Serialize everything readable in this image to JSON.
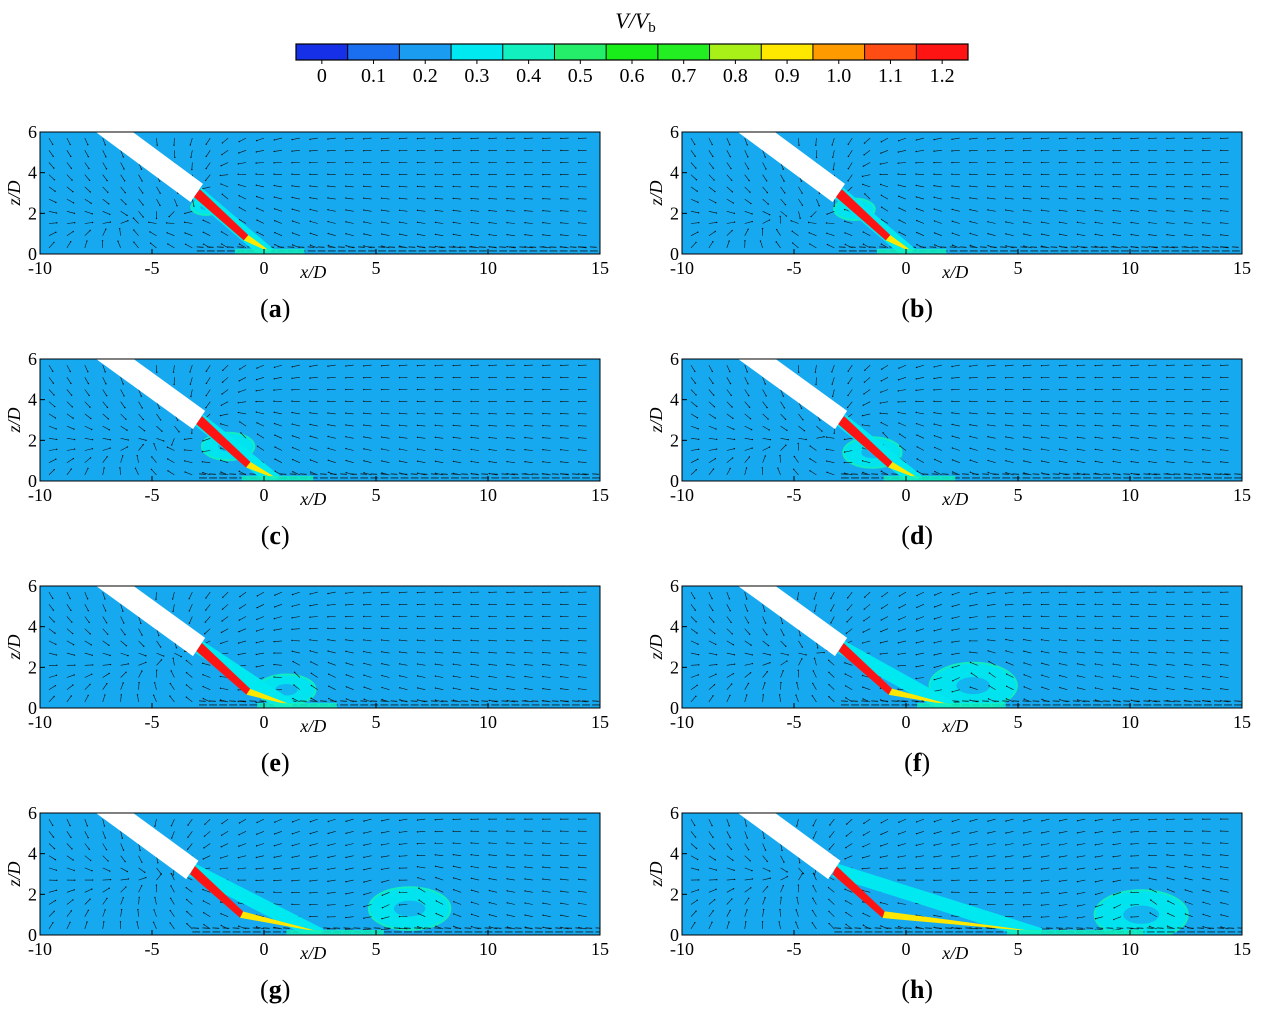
{
  "colorbar": {
    "title_main": "V/V",
    "title_sub": "b",
    "ticks": [
      "0",
      "0.1",
      "0.2",
      "0.3",
      "0.4",
      "0.5",
      "0.6",
      "0.7",
      "0.8",
      "0.9",
      "1.0",
      "1.1",
      "1.2"
    ],
    "colors": [
      "#1530e6",
      "#1a6ff0",
      "#1a9cf0",
      "#00e8f0",
      "#12f0c0",
      "#25ee6a",
      "#1aee1a",
      "#22ee22",
      "#a8f018",
      "#ffe800",
      "#ff9a00",
      "#ff4d14",
      "#ff1414"
    ]
  },
  "background_color": "#17a9f0",
  "panels": [
    {
      "label": "a",
      "xlabel": "x/D",
      "ylabel": "z/D",
      "xticks": [
        "-10",
        "-5",
        "0",
        "5",
        "10",
        "15"
      ],
      "yticks": [
        "0",
        "2",
        "4",
        "6"
      ]
    },
    {
      "label": "b",
      "xlabel": "x/D",
      "ylabel": "z/D",
      "xticks": [
        "-10",
        "-5",
        "0",
        "5",
        "10",
        "15"
      ],
      "yticks": [
        "0",
        "2",
        "4",
        "6"
      ]
    },
    {
      "label": "c",
      "xlabel": "x/D",
      "ylabel": "z/D",
      "xticks": [
        "-10",
        "-5",
        "0",
        "5",
        "10",
        "15"
      ],
      "yticks": [
        "0",
        "2",
        "4",
        "6"
      ]
    },
    {
      "label": "d",
      "xlabel": "x/D",
      "ylabel": "z/D",
      "xticks": [
        "-10",
        "-5",
        "0",
        "5",
        "10",
        "15"
      ],
      "yticks": [
        "0",
        "2",
        "4",
        "6"
      ]
    },
    {
      "label": "e",
      "xlabel": "x/D",
      "ylabel": "z/D",
      "xticks": [
        "-10",
        "-5",
        "0",
        "5",
        "10",
        "15"
      ],
      "yticks": [
        "0",
        "2",
        "4",
        "6"
      ]
    },
    {
      "label": "f",
      "xlabel": "x/D",
      "ylabel": "z/D",
      "xticks": [
        "-10",
        "-5",
        "0",
        "5",
        "10",
        "15"
      ],
      "yticks": [
        "0",
        "2",
        "4",
        "6"
      ]
    },
    {
      "label": "g",
      "xlabel": "x/D",
      "ylabel": "z/D",
      "xticks": [
        "-10",
        "-5",
        "0",
        "5",
        "10",
        "15"
      ],
      "yticks": [
        "0",
        "2",
        "4",
        "6"
      ]
    },
    {
      "label": "h",
      "xlabel": "x/D",
      "ylabel": "z/D",
      "xticks": [
        "-10",
        "-5",
        "0",
        "5",
        "10",
        "15"
      ],
      "yticks": [
        "0",
        "2",
        "4",
        "6"
      ]
    }
  ],
  "chart_data": {
    "type": "heatmap",
    "colorbar_ticks": [
      0,
      0.1,
      0.2,
      0.3,
      0.4,
      0.5,
      0.6,
      0.7,
      0.8,
      0.9,
      1.0,
      1.1,
      1.2
    ],
    "xlim": [
      -10,
      15
    ],
    "ylim": [
      0,
      6
    ],
    "jet_start": [
      -7,
      6
    ],
    "jet_impingement_x": 0,
    "nozzle_exit": [
      {
        "panel": "a",
        "x": -3.0,
        "z": 3.0,
        "jet_end_x": 0.2
      },
      {
        "panel": "b",
        "x": -3.0,
        "z": 3.0,
        "jet_end_x": 0.2
      },
      {
        "panel": "c",
        "x": -2.9,
        "z": 3.0,
        "jet_end_x": 0.5
      },
      {
        "panel": "d",
        "x": -2.9,
        "z": 3.0,
        "jet_end_x": 0.5
      },
      {
        "panel": "e",
        "x": -2.9,
        "z": 3.0,
        "jet_end_x": 1.2
      },
      {
        "panel": "f",
        "x": -2.9,
        "z": 3.0,
        "jet_end_x": 2.0
      },
      {
        "panel": "g",
        "x": -3.2,
        "z": 3.2,
        "jet_end_x": 2.5
      },
      {
        "panel": "h",
        "x": -3.2,
        "z": 3.2,
        "jet_end_x": 6.0
      }
    ],
    "vortex": [
      {
        "panel": "a",
        "x": -2.6,
        "z": 2.3,
        "r": 0.5
      },
      {
        "panel": "b",
        "x": -2.3,
        "z": 2.2,
        "r": 0.7
      },
      {
        "panel": "c",
        "x": -1.6,
        "z": 1.7,
        "r": 0.9
      },
      {
        "panel": "d",
        "x": -1.5,
        "z": 1.4,
        "r": 1.0
      },
      {
        "panel": "e",
        "x": 1.0,
        "z": 0.9,
        "r": 1.0
      },
      {
        "panel": "f",
        "x": 3.0,
        "z": 1.1,
        "r": 1.5
      },
      {
        "panel": "g",
        "x": 6.5,
        "z": 1.3,
        "r": 1.4
      },
      {
        "panel": "h",
        "x": 10.5,
        "z": 1.0,
        "r": 1.6
      }
    ]
  }
}
